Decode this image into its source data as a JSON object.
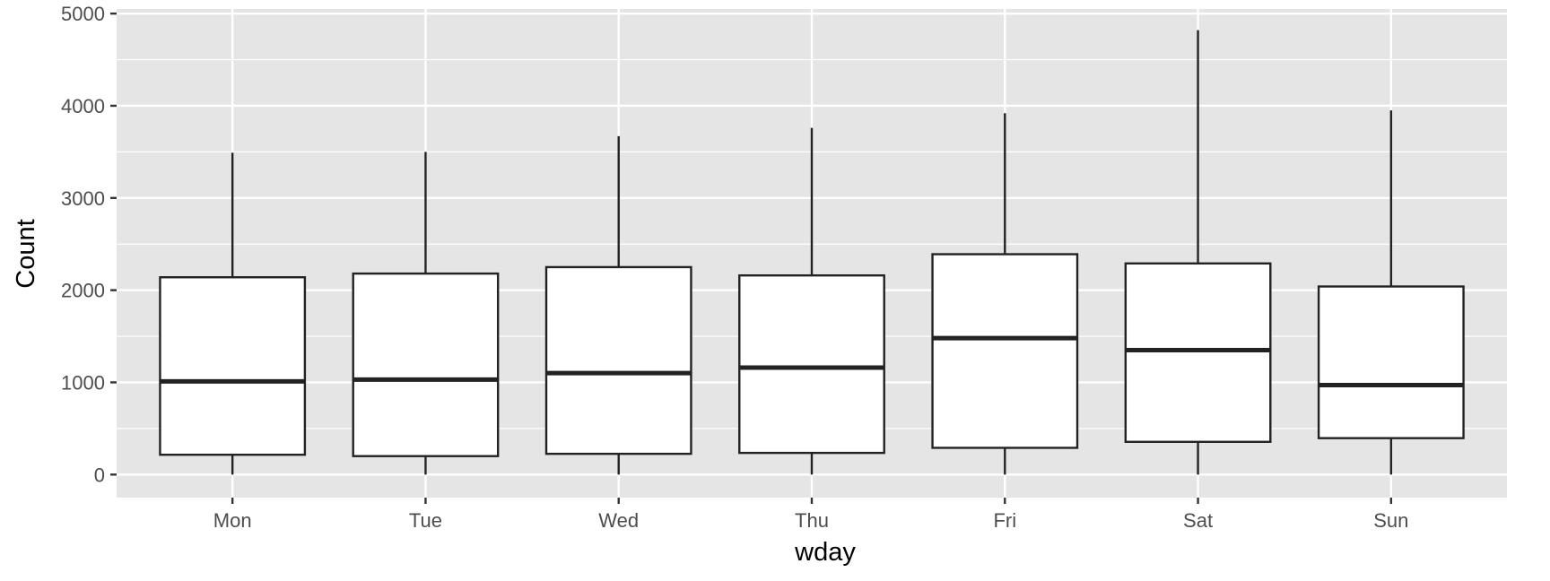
{
  "chart_data": {
    "type": "boxplot",
    "title": "",
    "xlabel": "wday",
    "ylabel": "Count",
    "categories": [
      "Mon",
      "Tue",
      "Wed",
      "Thu",
      "Fri",
      "Sat",
      "Sun"
    ],
    "ylim": [
      -250,
      5050
    ],
    "yticks": [
      0,
      1000,
      2000,
      3000,
      4000,
      5000
    ],
    "ytick_labels": [
      "0",
      "1000",
      "2000",
      "3000",
      "4000",
      "5000"
    ],
    "boxes": [
      {
        "category": "Mon",
        "min": 0,
        "q1": 215,
        "median": 1010,
        "q3": 2140,
        "max": 3490
      },
      {
        "category": "Tue",
        "min": 0,
        "q1": 200,
        "median": 1030,
        "q3": 2180,
        "max": 3500
      },
      {
        "category": "Wed",
        "min": 0,
        "q1": 225,
        "median": 1100,
        "q3": 2250,
        "max": 3670
      },
      {
        "category": "Thu",
        "min": 0,
        "q1": 235,
        "median": 1160,
        "q3": 2160,
        "max": 3760
      },
      {
        "category": "Fri",
        "min": 0,
        "q1": 290,
        "median": 1480,
        "q3": 2390,
        "max": 3920
      },
      {
        "category": "Sat",
        "min": 0,
        "q1": 355,
        "median": 1350,
        "q3": 2290,
        "max": 4820
      },
      {
        "category": "Sun",
        "min": 0,
        "q1": 395,
        "median": 970,
        "q3": 2040,
        "max": 3950
      }
    ],
    "grid": true,
    "legend": "none",
    "colors": {
      "panel_background": "#e5e5e5",
      "grid_line": "#ffffff",
      "box_fill": "#ffffff",
      "box_line": "#222222",
      "tick_text": "#4d4d4d",
      "axis_title": "#000000"
    }
  }
}
